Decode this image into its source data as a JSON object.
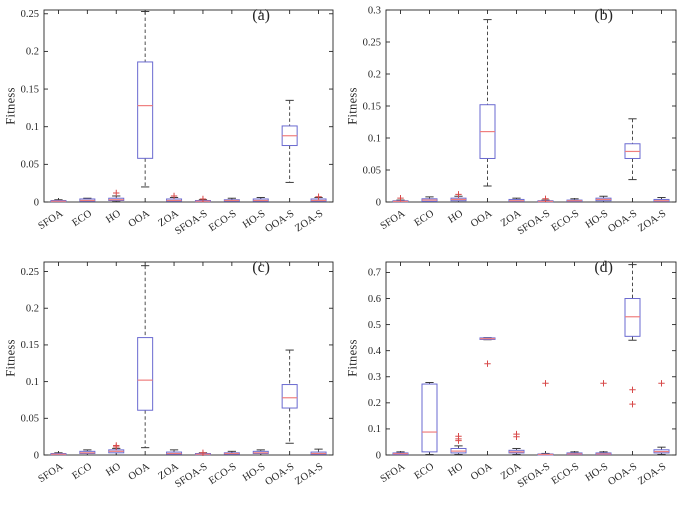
{
  "style": {
    "box_color": "#6a6ad0",
    "median_color": "#ef7f7f",
    "whisker_color": "#3a3a3a",
    "cap_color": "#3a3a3a",
    "flier_color": "#d84a4a",
    "axis_color": "#262626",
    "text_color": "#262626"
  },
  "chart_data": [
    {
      "type": "boxplot",
      "panel_label": "(a)",
      "ylabel": "Fitness",
      "ylim": [
        0,
        0.255
      ],
      "yticks": [
        0,
        0.05,
        0.1,
        0.15,
        0.2,
        0.25
      ],
      "ytick_labels": [
        "0",
        "0.05",
        "0.1",
        "0.15",
        "0.2",
        "0.25"
      ],
      "categories": [
        "SFOA",
        "ECO",
        "HO",
        "OOA",
        "ZOA",
        "SFOA-S",
        "ECO-S",
        "HO-S",
        "OOA-S",
        "ZOA-S"
      ],
      "boxes": [
        {
          "whislo": 0.0,
          "q1": 0.0005,
          "med": 0.001,
          "q3": 0.002,
          "whishi": 0.003,
          "fliers": []
        },
        {
          "whislo": 0.0,
          "q1": 0.001,
          "med": 0.002,
          "q3": 0.004,
          "whishi": 0.005,
          "fliers": []
        },
        {
          "whislo": 0.0005,
          "q1": 0.002,
          "med": 0.003,
          "q3": 0.005,
          "whishi": 0.008,
          "fliers": [
            0.012
          ]
        },
        {
          "whislo": 0.02,
          "q1": 0.058,
          "med": 0.128,
          "q3": 0.186,
          "whishi": 0.253,
          "fliers": []
        },
        {
          "whislo": 0.0,
          "q1": 0.001,
          "med": 0.002,
          "q3": 0.004,
          "whishi": 0.006,
          "fliers": [
            0.008
          ]
        },
        {
          "whislo": 0.0,
          "q1": 0.0005,
          "med": 0.001,
          "q3": 0.002,
          "whishi": 0.003,
          "fliers": [
            0.004
          ]
        },
        {
          "whislo": 0.0,
          "q1": 0.001,
          "med": 0.002,
          "q3": 0.003,
          "whishi": 0.005,
          "fliers": []
        },
        {
          "whislo": 0.0,
          "q1": 0.001,
          "med": 0.002,
          "q3": 0.004,
          "whishi": 0.006,
          "fliers": []
        },
        {
          "whislo": 0.026,
          "q1": 0.075,
          "med": 0.088,
          "q3": 0.101,
          "whishi": 0.135,
          "fliers": []
        },
        {
          "whislo": 0.0,
          "q1": 0.001,
          "med": 0.002,
          "q3": 0.004,
          "whishi": 0.006,
          "fliers": [
            0.007
          ]
        }
      ]
    },
    {
      "type": "boxplot",
      "panel_label": "(b)",
      "ylabel": "Fitness",
      "ylim": [
        0,
        0.3
      ],
      "yticks": [
        0,
        0.05,
        0.1,
        0.15,
        0.2,
        0.25,
        0.3
      ],
      "ytick_labels": [
        "0",
        "0.05",
        "0.1",
        "0.15",
        "0.2",
        "0.25",
        "0.3"
      ],
      "categories": [
        "SFOA",
        "ECO",
        "HO",
        "OOA",
        "ZOA",
        "SFOA-S",
        "ECO-S",
        "HO-S",
        "OOA-S",
        "ZOA-S"
      ],
      "boxes": [
        {
          "whislo": 0.0,
          "q1": 0.0005,
          "med": 0.001,
          "q3": 0.002,
          "whishi": 0.003,
          "fliers": [
            0.006
          ]
        },
        {
          "whislo": 0.0,
          "q1": 0.001,
          "med": 0.003,
          "q3": 0.005,
          "whishi": 0.008,
          "fliers": []
        },
        {
          "whislo": 0.0,
          "q1": 0.002,
          "med": 0.004,
          "q3": 0.006,
          "whishi": 0.009,
          "fliers": [
            0.012
          ]
        },
        {
          "whislo": 0.025,
          "q1": 0.068,
          "med": 0.11,
          "q3": 0.152,
          "whishi": 0.285,
          "fliers": []
        },
        {
          "whislo": 0.0,
          "q1": 0.001,
          "med": 0.002,
          "q3": 0.004,
          "whishi": 0.006,
          "fliers": []
        },
        {
          "whislo": 0.0,
          "q1": 0.0005,
          "med": 0.001,
          "q3": 0.002,
          "whishi": 0.003,
          "fliers": [
            0.005
          ]
        },
        {
          "whislo": 0.0,
          "q1": 0.001,
          "med": 0.002,
          "q3": 0.003,
          "whishi": 0.005,
          "fliers": []
        },
        {
          "whislo": 0.0,
          "q1": 0.002,
          "med": 0.004,
          "q3": 0.006,
          "whishi": 0.009,
          "fliers": []
        },
        {
          "whislo": 0.035,
          "q1": 0.068,
          "med": 0.079,
          "q3": 0.091,
          "whishi": 0.13,
          "fliers": []
        },
        {
          "whislo": 0.0,
          "q1": 0.001,
          "med": 0.002,
          "q3": 0.004,
          "whishi": 0.007,
          "fliers": []
        }
      ]
    },
    {
      "type": "boxplot",
      "panel_label": "(c)",
      "ylabel": "Fitness",
      "ylim": [
        0,
        0.263
      ],
      "yticks": [
        0,
        0.05,
        0.1,
        0.15,
        0.2,
        0.25
      ],
      "ytick_labels": [
        "0",
        "0.05",
        "0.1",
        "0.15",
        "0.2",
        "0.25"
      ],
      "categories": [
        "SFOA",
        "ECO",
        "HO",
        "OOA",
        "ZOA",
        "SFOA-S",
        "ECO-S",
        "HO-S",
        "OOA-S",
        "ZOA-S"
      ],
      "boxes": [
        {
          "whislo": 0.0,
          "q1": 0.0005,
          "med": 0.001,
          "q3": 0.002,
          "whishi": 0.003,
          "fliers": []
        },
        {
          "whislo": 0.0,
          "q1": 0.002,
          "med": 0.003,
          "q3": 0.005,
          "whishi": 0.007,
          "fliers": []
        },
        {
          "whislo": 0.0,
          "q1": 0.003,
          "med": 0.005,
          "q3": 0.007,
          "whishi": 0.009,
          "fliers": [
            0.011,
            0.013
          ]
        },
        {
          "whislo": 0.01,
          "q1": 0.061,
          "med": 0.102,
          "q3": 0.16,
          "whishi": 0.258,
          "fliers": []
        },
        {
          "whislo": 0.0,
          "q1": 0.001,
          "med": 0.002,
          "q3": 0.004,
          "whishi": 0.007,
          "fliers": []
        },
        {
          "whislo": 0.0,
          "q1": 0.0005,
          "med": 0.001,
          "q3": 0.002,
          "whishi": 0.003,
          "fliers": [
            0.003
          ]
        },
        {
          "whislo": 0.0,
          "q1": 0.001,
          "med": 0.002,
          "q3": 0.003,
          "whishi": 0.005,
          "fliers": []
        },
        {
          "whislo": 0.0,
          "q1": 0.002,
          "med": 0.003,
          "q3": 0.005,
          "whishi": 0.007,
          "fliers": []
        },
        {
          "whislo": 0.016,
          "q1": 0.064,
          "med": 0.078,
          "q3": 0.096,
          "whishi": 0.143,
          "fliers": []
        },
        {
          "whislo": 0.0,
          "q1": 0.001,
          "med": 0.002,
          "q3": 0.004,
          "whishi": 0.008,
          "fliers": []
        }
      ]
    },
    {
      "type": "boxplot",
      "panel_label": "(d)",
      "ylabel": "Fitness",
      "ylim": [
        0,
        0.74
      ],
      "yticks": [
        0,
        0.1,
        0.2,
        0.3,
        0.4,
        0.5,
        0.6,
        0.7
      ],
      "ytick_labels": [
        "0",
        "0.1",
        "0.2",
        "0.3",
        "0.4",
        "0.5",
        "0.6",
        "0.7"
      ],
      "categories": [
        "SFOA",
        "ECO",
        "HO",
        "OOA",
        "ZOA",
        "SFOA-S",
        "ECO-S",
        "HO-S",
        "OOA-S",
        "ZOA-S"
      ],
      "boxes": [
        {
          "whislo": 0.0,
          "q1": 0.002,
          "med": 0.005,
          "q3": 0.008,
          "whishi": 0.012,
          "fliers": []
        },
        {
          "whislo": 0.002,
          "q1": 0.012,
          "med": 0.088,
          "q3": 0.272,
          "whishi": 0.278,
          "fliers": []
        },
        {
          "whislo": 0.002,
          "q1": 0.008,
          "med": 0.015,
          "q3": 0.025,
          "whishi": 0.035,
          "fliers": [
            0.055,
            0.062,
            0.072
          ]
        },
        {
          "whislo": 0.442,
          "q1": 0.443,
          "med": 0.446,
          "q3": 0.449,
          "whishi": 0.45,
          "fliers": [
            0.35
          ]
        },
        {
          "whislo": 0.002,
          "q1": 0.008,
          "med": 0.012,
          "q3": 0.018,
          "whishi": 0.025,
          "fliers": [
            0.07,
            0.08
          ]
        },
        {
          "whislo": 0.0,
          "q1": 0.001,
          "med": 0.002,
          "q3": 0.004,
          "whishi": 0.006,
          "fliers": [
            0.275
          ]
        },
        {
          "whislo": 0.0,
          "q1": 0.002,
          "med": 0.004,
          "q3": 0.008,
          "whishi": 0.012,
          "fliers": []
        },
        {
          "whislo": 0.0,
          "q1": 0.002,
          "med": 0.004,
          "q3": 0.008,
          "whishi": 0.012,
          "fliers": [
            0.275
          ]
        },
        {
          "whislo": 0.44,
          "q1": 0.455,
          "med": 0.53,
          "q3": 0.6,
          "whishi": 0.73,
          "fliers": [
            0.195,
            0.25
          ]
        },
        {
          "whislo": 0.002,
          "q1": 0.008,
          "med": 0.013,
          "q3": 0.02,
          "whishi": 0.03,
          "fliers": [
            0.275
          ]
        }
      ]
    }
  ]
}
